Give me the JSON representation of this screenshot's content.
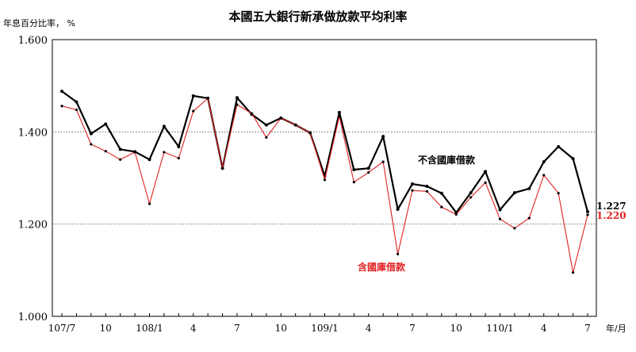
{
  "chart_data": {
    "type": "line",
    "title": "本國五大銀行新承做放款平均利率",
    "ylabel": "年息百分比率， %",
    "xlabel": "年/月",
    "ylim": [
      1.0,
      1.6
    ],
    "yticks": [
      "1.000",
      "1.200",
      "1.400",
      "1.600"
    ],
    "grid": "dotted horizontal at 1.200 and 1.400",
    "x": [
      "107/7",
      "107/8",
      "107/9",
      "107/10",
      "107/11",
      "107/12",
      "108/1",
      "108/2",
      "108/3",
      "108/4",
      "108/5",
      "108/6",
      "108/7",
      "108/8",
      "108/9",
      "108/10",
      "108/11",
      "108/12",
      "109/1",
      "109/2",
      "109/3",
      "109/4",
      "109/5",
      "109/6",
      "109/7",
      "109/8",
      "109/9",
      "109/10",
      "109/11",
      "109/12",
      "110/1",
      "110/2",
      "110/3",
      "110/4",
      "110/5",
      "110/6",
      "110/7"
    ],
    "xtick_labels": [
      {
        "i": 0,
        "label": "107/7"
      },
      {
        "i": 3,
        "label": "10"
      },
      {
        "i": 6,
        "label": "108/1"
      },
      {
        "i": 9,
        "label": "4"
      },
      {
        "i": 12,
        "label": "7"
      },
      {
        "i": 15,
        "label": "10"
      },
      {
        "i": 18,
        "label": "109/1"
      },
      {
        "i": 21,
        "label": "4"
      },
      {
        "i": 24,
        "label": "7"
      },
      {
        "i": 27,
        "label": "10"
      },
      {
        "i": 30,
        "label": "110/1"
      },
      {
        "i": 33,
        "label": "4"
      },
      {
        "i": 36,
        "label": "7"
      }
    ],
    "series": [
      {
        "name": "不含國庫借款",
        "color": "#000000",
        "end_label": "1.227",
        "values": [
          1.488,
          1.465,
          1.396,
          1.417,
          1.362,
          1.357,
          1.34,
          1.412,
          1.368,
          1.478,
          1.473,
          1.321,
          1.474,
          1.438,
          1.415,
          1.43,
          1.415,
          1.398,
          1.304,
          1.442,
          1.318,
          1.321,
          1.39,
          1.232,
          1.287,
          1.282,
          1.267,
          1.225,
          1.268,
          1.314,
          1.231,
          1.268,
          1.277,
          1.335,
          1.368,
          1.342,
          1.227
        ]
      },
      {
        "name": "含國庫借款",
        "color": "#e02020",
        "end_label": "1.220",
        "values": [
          1.456,
          1.448,
          1.373,
          1.358,
          1.34,
          1.356,
          1.244,
          1.356,
          1.343,
          1.445,
          1.473,
          1.321,
          1.459,
          1.44,
          1.388,
          1.43,
          1.415,
          1.398,
          1.296,
          1.434,
          1.291,
          1.312,
          1.335,
          1.135,
          1.273,
          1.271,
          1.237,
          1.221,
          1.258,
          1.29,
          1.211,
          1.191,
          1.213,
          1.306,
          1.267,
          1.095,
          1.22
        ]
      }
    ]
  }
}
